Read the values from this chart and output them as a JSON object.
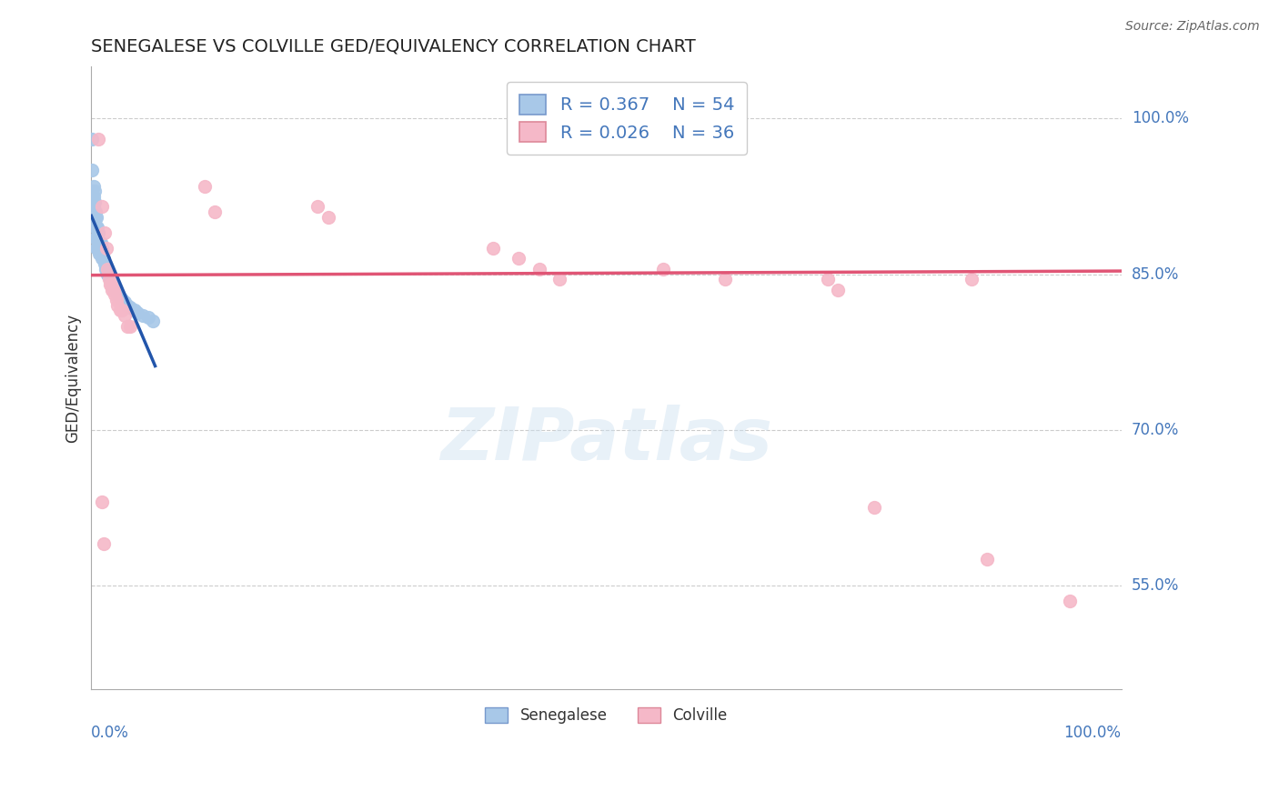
{
  "title": "SENEGALESE VS COLVILLE GED/EQUIVALENCY CORRELATION CHART",
  "source": "Source: ZipAtlas.com",
  "ylabel": "GED/Equivalency",
  "ylabel_right_labels": [
    "100.0%",
    "85.0%",
    "70.0%",
    "55.0%"
  ],
  "ylabel_right_values": [
    1.0,
    0.85,
    0.7,
    0.55
  ],
  "legend_r1": "R = 0.367",
  "legend_n1": "N = 54",
  "legend_r2": "R = 0.026",
  "legend_n2": "N = 36",
  "blue_color": "#a8c8e8",
  "pink_color": "#f5b8c8",
  "blue_line_color": "#2255aa",
  "pink_line_color": "#e05575",
  "senegalese_points": [
    [
      0.001,
      0.98
    ],
    [
      0.001,
      0.95
    ],
    [
      0.001,
      0.93
    ],
    [
      0.002,
      0.935
    ],
    [
      0.002,
      0.925
    ],
    [
      0.002,
      0.915
    ],
    [
      0.002,
      0.905
    ],
    [
      0.003,
      0.93
    ],
    [
      0.003,
      0.92
    ],
    [
      0.003,
      0.91
    ],
    [
      0.003,
      0.9
    ],
    [
      0.004,
      0.91
    ],
    [
      0.004,
      0.905
    ],
    [
      0.004,
      0.895
    ],
    [
      0.004,
      0.885
    ],
    [
      0.005,
      0.905
    ],
    [
      0.005,
      0.895
    ],
    [
      0.005,
      0.885
    ],
    [
      0.005,
      0.875
    ],
    [
      0.006,
      0.895
    ],
    [
      0.006,
      0.885
    ],
    [
      0.006,
      0.875
    ],
    [
      0.007,
      0.89
    ],
    [
      0.007,
      0.875
    ],
    [
      0.008,
      0.88
    ],
    [
      0.008,
      0.87
    ],
    [
      0.009,
      0.88
    ],
    [
      0.009,
      0.87
    ],
    [
      0.01,
      0.875
    ],
    [
      0.01,
      0.865
    ],
    [
      0.011,
      0.87
    ],
    [
      0.012,
      0.865
    ],
    [
      0.013,
      0.86
    ],
    [
      0.014,
      0.855
    ],
    [
      0.015,
      0.855
    ],
    [
      0.016,
      0.85
    ],
    [
      0.017,
      0.848
    ],
    [
      0.018,
      0.845
    ],
    [
      0.019,
      0.843
    ],
    [
      0.02,
      0.84
    ],
    [
      0.021,
      0.838
    ],
    [
      0.022,
      0.836
    ],
    [
      0.024,
      0.833
    ],
    [
      0.026,
      0.83
    ],
    [
      0.028,
      0.828
    ],
    [
      0.03,
      0.826
    ],
    [
      0.032,
      0.823
    ],
    [
      0.035,
      0.82
    ],
    [
      0.038,
      0.818
    ],
    [
      0.042,
      0.815
    ],
    [
      0.045,
      0.813
    ],
    [
      0.05,
      0.81
    ],
    [
      0.055,
      0.808
    ],
    [
      0.06,
      0.805
    ]
  ],
  "colville_points": [
    [
      0.007,
      0.98
    ],
    [
      0.01,
      0.915
    ],
    [
      0.013,
      0.89
    ],
    [
      0.015,
      0.875
    ],
    [
      0.016,
      0.855
    ],
    [
      0.017,
      0.845
    ],
    [
      0.018,
      0.84
    ],
    [
      0.019,
      0.84
    ],
    [
      0.02,
      0.835
    ],
    [
      0.022,
      0.835
    ],
    [
      0.023,
      0.83
    ],
    [
      0.024,
      0.825
    ],
    [
      0.025,
      0.82
    ],
    [
      0.028,
      0.815
    ],
    [
      0.03,
      0.815
    ],
    [
      0.032,
      0.81
    ],
    [
      0.035,
      0.8
    ],
    [
      0.038,
      0.8
    ],
    [
      0.11,
      0.935
    ],
    [
      0.12,
      0.91
    ],
    [
      0.22,
      0.915
    ],
    [
      0.23,
      0.905
    ],
    [
      0.39,
      0.875
    ],
    [
      0.415,
      0.865
    ],
    [
      0.435,
      0.855
    ],
    [
      0.455,
      0.845
    ],
    [
      0.555,
      0.855
    ],
    [
      0.615,
      0.845
    ],
    [
      0.715,
      0.845
    ],
    [
      0.725,
      0.835
    ],
    [
      0.76,
      0.625
    ],
    [
      0.855,
      0.845
    ],
    [
      0.87,
      0.575
    ],
    [
      0.95,
      0.535
    ],
    [
      0.01,
      0.63
    ],
    [
      0.012,
      0.59
    ]
  ],
  "bg_color": "#ffffff",
  "grid_color": "#cccccc",
  "xlim": [
    0.0,
    1.0
  ],
  "ylim": [
    0.45,
    1.05
  ],
  "blue_line_x": [
    0.0,
    0.065
  ],
  "blue_line_y_intercept": 0.856,
  "blue_line_slope": -0.8,
  "pink_line_x": [
    0.0,
    1.0
  ],
  "pink_line_y_start": 0.849,
  "pink_line_y_end": 0.853
}
